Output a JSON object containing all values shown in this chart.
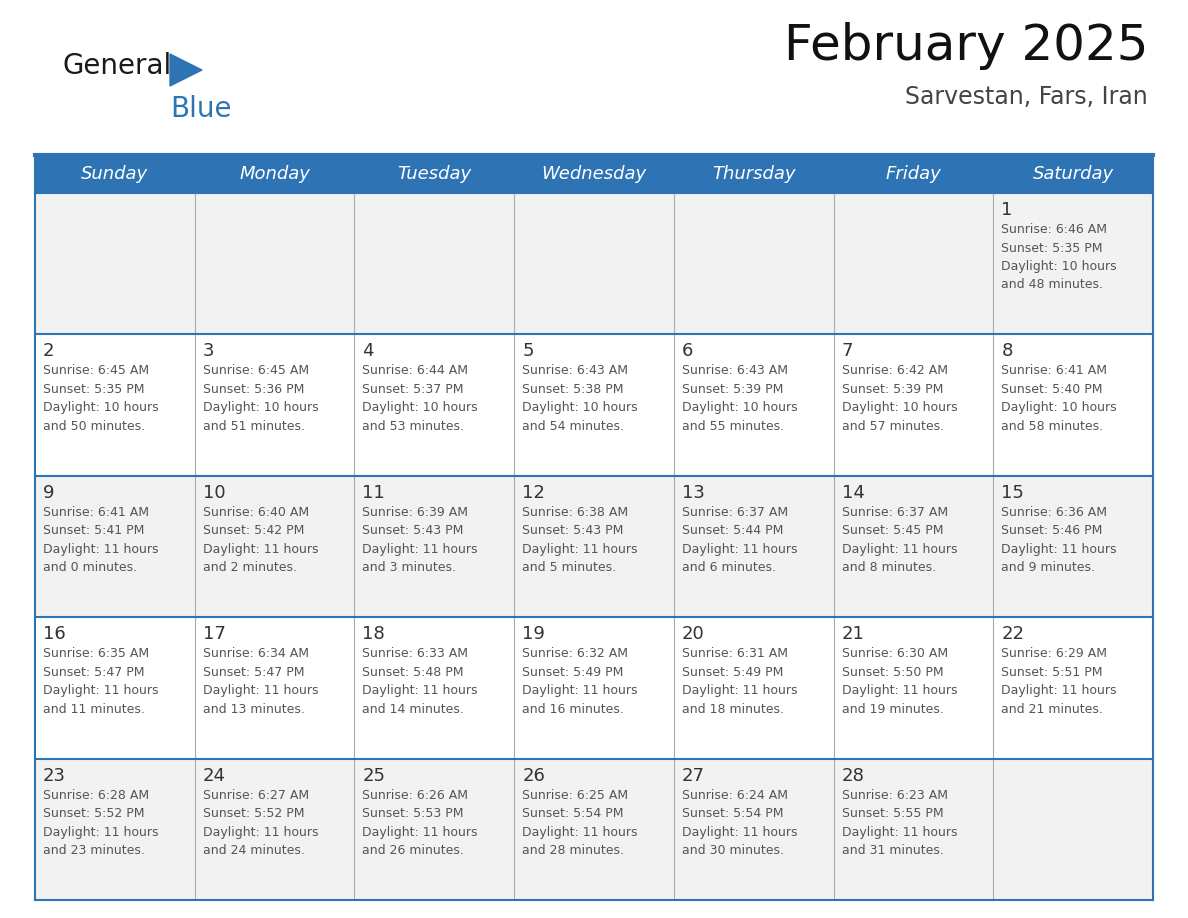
{
  "title": "February 2025",
  "subtitle": "Sarvestan, Fars, Iran",
  "days_of_week": [
    "Sunday",
    "Monday",
    "Tuesday",
    "Wednesday",
    "Thursday",
    "Friday",
    "Saturday"
  ],
  "header_bg": "#2E74B5",
  "header_text_color": "#FFFFFF",
  "row_bg_light": "#F2F2F2",
  "row_bg_white": "#FFFFFF",
  "cell_text_color": "#555555",
  "day_num_color": "#333333",
  "border_color": "#2E74B5",
  "col_border_color": "#AAAAAA",
  "row_border_color": "#2E74B5",
  "title_color": "#111111",
  "subtitle_color": "#444444",
  "calendar_data": [
    [
      {
        "day": null,
        "info": null
      },
      {
        "day": null,
        "info": null
      },
      {
        "day": null,
        "info": null
      },
      {
        "day": null,
        "info": null
      },
      {
        "day": null,
        "info": null
      },
      {
        "day": null,
        "info": null
      },
      {
        "day": 1,
        "info": "Sunrise: 6:46 AM\nSunset: 5:35 PM\nDaylight: 10 hours\nand 48 minutes."
      }
    ],
    [
      {
        "day": 2,
        "info": "Sunrise: 6:45 AM\nSunset: 5:35 PM\nDaylight: 10 hours\nand 50 minutes."
      },
      {
        "day": 3,
        "info": "Sunrise: 6:45 AM\nSunset: 5:36 PM\nDaylight: 10 hours\nand 51 minutes."
      },
      {
        "day": 4,
        "info": "Sunrise: 6:44 AM\nSunset: 5:37 PM\nDaylight: 10 hours\nand 53 minutes."
      },
      {
        "day": 5,
        "info": "Sunrise: 6:43 AM\nSunset: 5:38 PM\nDaylight: 10 hours\nand 54 minutes."
      },
      {
        "day": 6,
        "info": "Sunrise: 6:43 AM\nSunset: 5:39 PM\nDaylight: 10 hours\nand 55 minutes."
      },
      {
        "day": 7,
        "info": "Sunrise: 6:42 AM\nSunset: 5:39 PM\nDaylight: 10 hours\nand 57 minutes."
      },
      {
        "day": 8,
        "info": "Sunrise: 6:41 AM\nSunset: 5:40 PM\nDaylight: 10 hours\nand 58 minutes."
      }
    ],
    [
      {
        "day": 9,
        "info": "Sunrise: 6:41 AM\nSunset: 5:41 PM\nDaylight: 11 hours\nand 0 minutes."
      },
      {
        "day": 10,
        "info": "Sunrise: 6:40 AM\nSunset: 5:42 PM\nDaylight: 11 hours\nand 2 minutes."
      },
      {
        "day": 11,
        "info": "Sunrise: 6:39 AM\nSunset: 5:43 PM\nDaylight: 11 hours\nand 3 minutes."
      },
      {
        "day": 12,
        "info": "Sunrise: 6:38 AM\nSunset: 5:43 PM\nDaylight: 11 hours\nand 5 minutes."
      },
      {
        "day": 13,
        "info": "Sunrise: 6:37 AM\nSunset: 5:44 PM\nDaylight: 11 hours\nand 6 minutes."
      },
      {
        "day": 14,
        "info": "Sunrise: 6:37 AM\nSunset: 5:45 PM\nDaylight: 11 hours\nand 8 minutes."
      },
      {
        "day": 15,
        "info": "Sunrise: 6:36 AM\nSunset: 5:46 PM\nDaylight: 11 hours\nand 9 minutes."
      }
    ],
    [
      {
        "day": 16,
        "info": "Sunrise: 6:35 AM\nSunset: 5:47 PM\nDaylight: 11 hours\nand 11 minutes."
      },
      {
        "day": 17,
        "info": "Sunrise: 6:34 AM\nSunset: 5:47 PM\nDaylight: 11 hours\nand 13 minutes."
      },
      {
        "day": 18,
        "info": "Sunrise: 6:33 AM\nSunset: 5:48 PM\nDaylight: 11 hours\nand 14 minutes."
      },
      {
        "day": 19,
        "info": "Sunrise: 6:32 AM\nSunset: 5:49 PM\nDaylight: 11 hours\nand 16 minutes."
      },
      {
        "day": 20,
        "info": "Sunrise: 6:31 AM\nSunset: 5:49 PM\nDaylight: 11 hours\nand 18 minutes."
      },
      {
        "day": 21,
        "info": "Sunrise: 6:30 AM\nSunset: 5:50 PM\nDaylight: 11 hours\nand 19 minutes."
      },
      {
        "day": 22,
        "info": "Sunrise: 6:29 AM\nSunset: 5:51 PM\nDaylight: 11 hours\nand 21 minutes."
      }
    ],
    [
      {
        "day": 23,
        "info": "Sunrise: 6:28 AM\nSunset: 5:52 PM\nDaylight: 11 hours\nand 23 minutes."
      },
      {
        "day": 24,
        "info": "Sunrise: 6:27 AM\nSunset: 5:52 PM\nDaylight: 11 hours\nand 24 minutes."
      },
      {
        "day": 25,
        "info": "Sunrise: 6:26 AM\nSunset: 5:53 PM\nDaylight: 11 hours\nand 26 minutes."
      },
      {
        "day": 26,
        "info": "Sunrise: 6:25 AM\nSunset: 5:54 PM\nDaylight: 11 hours\nand 28 minutes."
      },
      {
        "day": 27,
        "info": "Sunrise: 6:24 AM\nSunset: 5:54 PM\nDaylight: 11 hours\nand 30 minutes."
      },
      {
        "day": 28,
        "info": "Sunrise: 6:23 AM\nSunset: 5:55 PM\nDaylight: 11 hours\nand 31 minutes."
      },
      {
        "day": null,
        "info": null
      }
    ]
  ],
  "logo_text_general": "General",
  "logo_text_blue": "Blue",
  "logo_color_general": "#1a1a1a",
  "logo_color_blue": "#2E74B5",
  "logo_triangle_color": "#2E74B5",
  "fig_width": 11.88,
  "fig_height": 9.18,
  "dpi": 100
}
